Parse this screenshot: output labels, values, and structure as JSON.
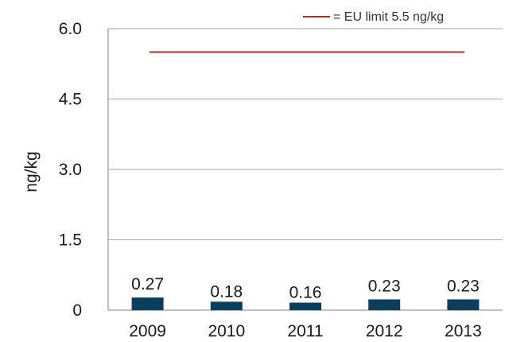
{
  "chart_data": {
    "type": "bar",
    "categories": [
      "2009",
      "2010",
      "2011",
      "2012",
      "2013"
    ],
    "values": [
      0.27,
      0.18,
      0.16,
      0.23,
      0.23
    ],
    "data_labels": [
      "0.27",
      "0.18",
      "0.16",
      "0.23",
      "0.23"
    ],
    "title": "",
    "xlabel": "",
    "ylabel": "ng/kg",
    "ylim": [
      0,
      6.0
    ],
    "yticks": [
      0,
      1.5,
      3.0,
      4.5,
      6.0
    ],
    "ytick_labels": [
      "0",
      "1.5",
      "3.0",
      "4.5",
      "6.0"
    ],
    "grid": true,
    "reference_line": {
      "value": 5.5,
      "label": "= EU limit 5.5 ng/kg",
      "color": "#b03020"
    },
    "legend_position": "top-right",
    "bar_color": "#0b3d5c"
  }
}
